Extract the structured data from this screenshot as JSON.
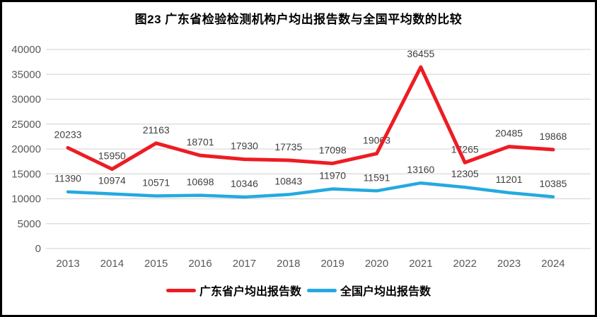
{
  "figure": {
    "background": "#ffffff",
    "border_color": "#000000"
  },
  "chart_data": {
    "type": "line",
    "title": "图23  广东省检验检测机构户均出报告数与全国平均数的比较",
    "categories": [
      "2013",
      "2014",
      "2015",
      "2016",
      "2017",
      "2018",
      "2019",
      "2020",
      "2021",
      "2022",
      "2023",
      "2024"
    ],
    "series": [
      {
        "name": "广东省户均出报告数",
        "color": "#ed1c24",
        "values": [
          20233,
          15950,
          21163,
          18701,
          17930,
          17735,
          17098,
          19063,
          36455,
          17265,
          20485,
          19868
        ]
      },
      {
        "name": "全国户均出报告数",
        "color": "#25a9e0",
        "values": [
          11390,
          10974,
          10571,
          10698,
          10346,
          10843,
          11970,
          11591,
          13160,
          12305,
          11201,
          10385
        ]
      }
    ],
    "xlabel": "",
    "ylabel": "",
    "ylim": [
      0,
      40000
    ],
    "ytick_step": 5000,
    "yticks": [
      0,
      5000,
      10000,
      15000,
      20000,
      25000,
      30000,
      35000,
      40000
    ],
    "grid": true,
    "gridline_color": "#d9d9d9",
    "tick_label_color": "#595959",
    "data_label_color": "#404040",
    "title_color": "#000000",
    "legend_position": "bottom",
    "data_labels": true
  }
}
